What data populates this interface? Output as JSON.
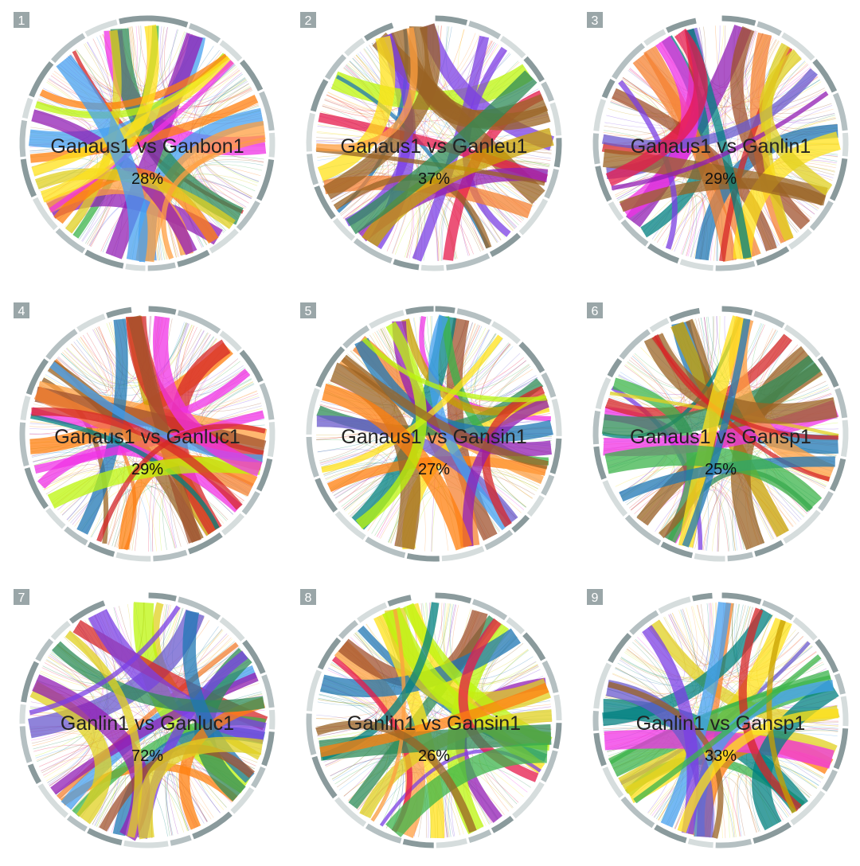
{
  "panels": [
    {
      "number": "1",
      "comparison": "Ganaus1 vs Ganbon1",
      "percent": "28%"
    },
    {
      "number": "2",
      "comparison": "Ganaus1 vs Ganleu1",
      "percent": "37%"
    },
    {
      "number": "3",
      "comparison": "Ganaus1 vs Ganlin1",
      "percent": "29%"
    },
    {
      "number": "4",
      "comparison": "Ganaus1 vs Ganluc1",
      "percent": "29%"
    },
    {
      "number": "5",
      "comparison": "Ganaus1 vs Gansin1",
      "percent": "27%"
    },
    {
      "number": "6",
      "comparison": "Ganaus1 vs Gansp1",
      "percent": "25%"
    },
    {
      "number": "7",
      "comparison": "Ganlin1 vs Ganluc1",
      "percent": "72%"
    },
    {
      "number": "8",
      "comparison": "Ganlin1 vs Gansin1",
      "percent": "26%"
    },
    {
      "number": "9",
      "comparison": "Ganlin1 vs Gansp1",
      "percent": "33%"
    }
  ]
}
